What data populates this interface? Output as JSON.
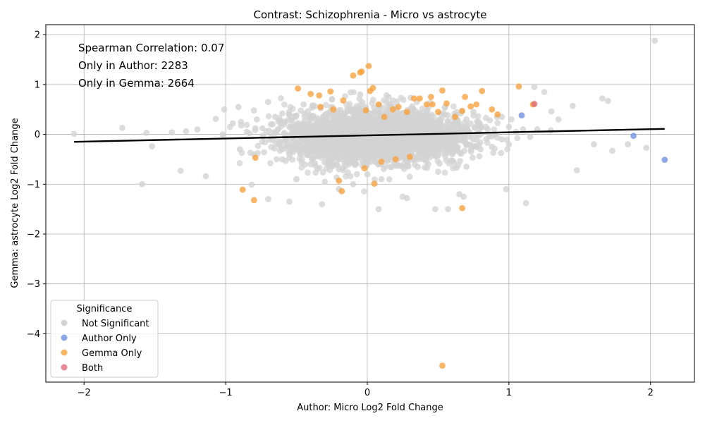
{
  "chart_data": {
    "type": "scatter",
    "title": "Contrast: Schizophrenia - Micro vs astrocyte",
    "xlabel": "Author: Micro Log2 Fold Change",
    "ylabel": "Gemma: astrocyte Log2 Fold Change",
    "xlim": [
      -2.27,
      2.31
    ],
    "ylim": [
      -4.97,
      2.2
    ],
    "xticks": [
      -2,
      -1,
      0,
      1,
      2
    ],
    "yticks": [
      2,
      1,
      0,
      -1,
      -2,
      -3,
      -4
    ],
    "xtick_labels": [
      "−2",
      "−1",
      "0",
      "1",
      "2"
    ],
    "ytick_labels": [
      "2",
      "1",
      "0",
      "−1",
      "−2",
      "−3",
      "−4"
    ],
    "grid": true,
    "annotations": [
      "Spearman Correlation: 0.07",
      "Only in Author: 2283",
      "Only in Gemma: 2664"
    ],
    "legend": {
      "title": "Significance",
      "placement": "lower-left",
      "entries": [
        "Not Significant",
        "Author Only",
        "Gemma Only",
        "Both"
      ]
    },
    "colors": {
      "Not Significant": "#d3d3d3",
      "Author Only": "#6f8fe0",
      "Gemma Only": "#f9a13b",
      "Both": "#e06a7a",
      "regression": "#000000",
      "grid": "#b0b0b0"
    },
    "regression_line": {
      "x": [
        -2.07,
        2.1
      ],
      "y": [
        -0.15,
        0.11
      ]
    },
    "series": [
      {
        "name": "Not Significant",
        "x": [
          -2.07,
          -1.73,
          -1.59,
          -1.56,
          -1.52,
          -1.38,
          -1.28,
          -1.2,
          -1.14,
          -1.07,
          -1.01,
          -0.95,
          -0.91,
          -0.89,
          -0.85,
          -0.8,
          -0.78,
          -0.74,
          -0.7,
          -0.68,
          -0.65,
          -0.63,
          -0.6,
          -0.58,
          -0.55,
          -0.53,
          -0.5,
          -0.48,
          -0.45,
          -0.43,
          -0.4,
          -0.38,
          -0.35,
          -0.33,
          -0.3,
          -0.28,
          -0.25,
          -0.22,
          -0.2,
          -0.18,
          -0.15,
          -0.12,
          -0.1,
          -0.08,
          -0.05,
          -0.03,
          0.0,
          0.02,
          0.05,
          0.08,
          0.1,
          0.12,
          0.15,
          0.18,
          0.2,
          0.22,
          0.25,
          0.28,
          0.3,
          0.32,
          0.35,
          0.38,
          0.4,
          0.42,
          0.45,
          0.48,
          0.5,
          0.52,
          0.55,
          0.58,
          0.6,
          0.62,
          0.65,
          0.68,
          0.7,
          0.72,
          0.75,
          0.78,
          0.8,
          0.85,
          0.9,
          0.95,
          1.0,
          1.05,
          1.1,
          1.15,
          1.2,
          1.25,
          1.3,
          1.35,
          1.45,
          1.48,
          1.6,
          1.66,
          1.7,
          1.73,
          1.84,
          1.97,
          2.03,
          -0.9,
          -0.8,
          -0.6,
          -0.4,
          -0.2,
          0.0,
          0.2,
          0.4,
          0.6,
          0.8,
          1.0,
          -0.5,
          -0.3,
          -0.1,
          0.1,
          0.3,
          0.5,
          0.7,
          -0.45,
          -0.25,
          -0.05,
          0.15,
          0.35,
          0.55,
          0.75,
          0.95,
          -0.7,
          -0.2,
          0.25,
          0.65,
          1.12,
          0.48,
          0.57,
          0.08,
          -0.32,
          0.68,
          -1.02,
          -0.55,
          0.28,
          0.98,
          1.18,
          -0.62,
          0.42,
          0.12,
          -0.08,
          0.58,
          0.88,
          -0.35,
          0.32,
          -0.15,
          0.72
        ],
        "y": [
          0.01,
          0.13,
          -1.0,
          0.03,
          -0.24,
          0.04,
          0.06,
          0.1,
          -0.84,
          0.31,
          0.5,
          0.22,
          0.55,
          0.18,
          0.05,
          0.48,
          0.3,
          0.12,
          0.65,
          0.2,
          0.35,
          0.1,
          0.42,
          0.25,
          0.15,
          0.05,
          0.38,
          0.2,
          0.1,
          0.0,
          0.3,
          0.18,
          0.05,
          0.12,
          -0.05,
          0.25,
          0.1,
          0.0,
          0.35,
          0.15,
          0.05,
          -0.1,
          0.2,
          0.1,
          0.0,
          0.3,
          0.15,
          -0.05,
          0.1,
          0.2,
          0.0,
          -0.1,
          0.15,
          0.05,
          -0.15,
          0.25,
          0.1,
          0.0,
          0.2,
          -0.1,
          0.05,
          0.3,
          0.15,
          0.0,
          -0.05,
          0.1,
          0.25,
          -0.1,
          0.05,
          0.2,
          0.0,
          0.15,
          -0.05,
          0.1,
          0.3,
          0.05,
          -0.1,
          0.2,
          0.0,
          0.1,
          0.0,
          -0.1,
          0.15,
          0.05,
          0.1,
          -0.05,
          0.1,
          0.85,
          0.46,
          0.3,
          0.57,
          -0.72,
          -0.2,
          0.72,
          0.67,
          -0.33,
          -0.2,
          -0.27,
          1.88,
          -0.3,
          -0.4,
          -0.5,
          -0.6,
          -0.7,
          -0.8,
          -0.6,
          -0.5,
          -0.4,
          -0.3,
          -0.2,
          -0.9,
          -0.95,
          -1.0,
          -0.9,
          -0.85,
          -0.75,
          -0.65,
          0.6,
          0.7,
          0.8,
          0.75,
          0.65,
          0.55,
          0.45,
          0.35,
          -1.3,
          -1.1,
          -1.25,
          -1.2,
          -1.38,
          -1.5,
          -1.5,
          -1.5,
          -1.4,
          -1.25,
          0.0,
          -1.35,
          -1.28,
          -1.1,
          0.95,
          -0.2,
          -0.1,
          -0.2,
          -0.3,
          -0.15,
          -0.25,
          -0.35,
          -0.45,
          -0.55,
          -0.05
        ]
      },
      {
        "name": "Author Only",
        "x": [
          1.09,
          1.88,
          2.1
        ],
        "y": [
          0.38,
          -0.03,
          -0.51
        ]
      },
      {
        "name": "Gemma Only",
        "x": [
          -0.49,
          -0.4,
          -0.34,
          -0.33,
          -0.26,
          -0.24,
          -0.17,
          -0.1,
          -0.05,
          -0.04,
          0.01,
          0.02,
          0.04,
          -0.01,
          0.08,
          0.12,
          0.18,
          0.22,
          0.28,
          0.33,
          0.37,
          0.42,
          0.45,
          0.5,
          0.53,
          0.56,
          0.62,
          0.67,
          0.69,
          0.73,
          0.77,
          0.81,
          0.88,
          0.92,
          1.07,
          1.17,
          -0.88,
          -0.8,
          -0.79,
          -0.2,
          -0.18,
          0.05,
          0.53,
          0.67,
          -0.02,
          0.1,
          0.3,
          0.46,
          0.2
        ],
        "y": [
          0.92,
          0.81,
          0.78,
          0.55,
          0.86,
          0.5,
          0.68,
          1.18,
          1.24,
          1.26,
          1.37,
          0.87,
          0.93,
          0.48,
          0.6,
          0.35,
          0.5,
          0.55,
          0.45,
          0.72,
          0.72,
          0.6,
          0.75,
          0.45,
          0.88,
          0.62,
          0.35,
          0.47,
          0.75,
          0.56,
          0.6,
          0.87,
          0.5,
          0.4,
          0.96,
          0.6,
          -1.11,
          -1.32,
          -0.47,
          -0.93,
          -1.14,
          -0.99,
          -4.64,
          -1.48,
          -0.68,
          -0.55,
          -0.45,
          0.6,
          -0.5
        ]
      },
      {
        "name": "Both",
        "x": [
          1.18
        ],
        "y": [
          0.61
        ]
      }
    ]
  }
}
